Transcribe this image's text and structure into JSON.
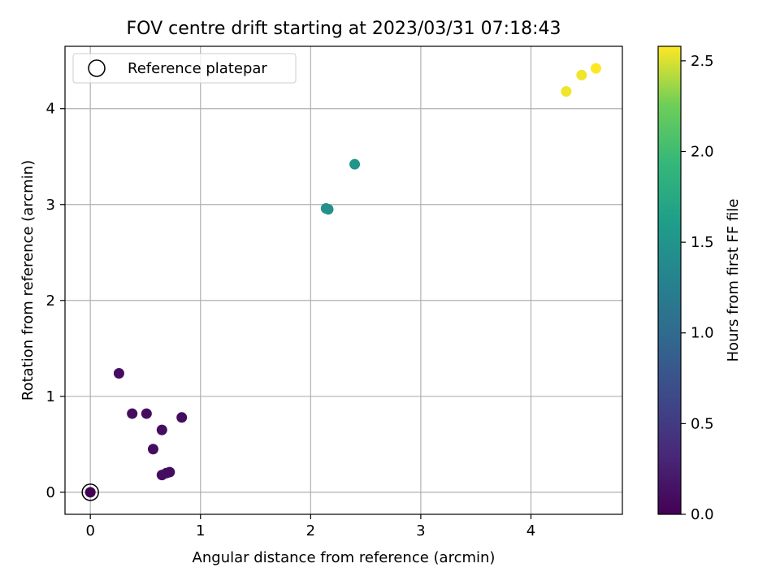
{
  "chart_data": {
    "type": "scatter",
    "title": "FOV centre drift starting at 2023/03/31 07:18:43",
    "xlabel": "Angular distance from reference (arcmin)",
    "ylabel": "Rotation from reference (arcmin)",
    "xlim": [
      -0.23,
      4.83
    ],
    "ylim": [
      -0.23,
      4.65
    ],
    "xticks": [
      0,
      1,
      2,
      3,
      4
    ],
    "xtick_labels": [
      "0",
      "1",
      "2",
      "3",
      "4"
    ],
    "yticks": [
      0,
      1,
      2,
      3,
      4
    ],
    "ytick_labels": [
      "0",
      "1",
      "2",
      "3",
      "4"
    ],
    "grid": true,
    "legend": {
      "placement": "top-left",
      "entries": [
        "Reference platepar"
      ]
    },
    "reference_point": {
      "x": 0,
      "y": 0
    },
    "points": [
      {
        "x": 0.0,
        "y": 0.0,
        "hours": 0.0
      },
      {
        "x": 0.26,
        "y": 1.24,
        "hours": 0.1
      },
      {
        "x": 0.38,
        "y": 0.82,
        "hours": 0.1
      },
      {
        "x": 0.51,
        "y": 0.82,
        "hours": 0.1
      },
      {
        "x": 0.57,
        "y": 0.45,
        "hours": 0.1
      },
      {
        "x": 0.65,
        "y": 0.65,
        "hours": 0.1
      },
      {
        "x": 0.65,
        "y": 0.18,
        "hours": 0.1
      },
      {
        "x": 0.69,
        "y": 0.2,
        "hours": 0.1
      },
      {
        "x": 0.72,
        "y": 0.21,
        "hours": 0.1
      },
      {
        "x": 0.83,
        "y": 0.78,
        "hours": 0.1
      },
      {
        "x": 2.14,
        "y": 2.96,
        "hours": 1.45
      },
      {
        "x": 2.16,
        "y": 2.95,
        "hours": 1.45
      },
      {
        "x": 2.4,
        "y": 3.42,
        "hours": 1.5
      },
      {
        "x": 4.32,
        "y": 4.18,
        "hours": 2.55
      },
      {
        "x": 4.46,
        "y": 4.35,
        "hours": 2.55
      },
      {
        "x": 4.59,
        "y": 4.42,
        "hours": 2.58
      }
    ],
    "colorbar": {
      "label": "Hours from first FF file",
      "range": [
        0.0,
        2.58
      ],
      "ticks": [
        0.0,
        0.5,
        1.0,
        1.5,
        2.0,
        2.5
      ],
      "tick_labels": [
        "0.0",
        "0.5",
        "1.0",
        "1.5",
        "2.0",
        "2.5"
      ],
      "colormap": "viridis"
    }
  }
}
